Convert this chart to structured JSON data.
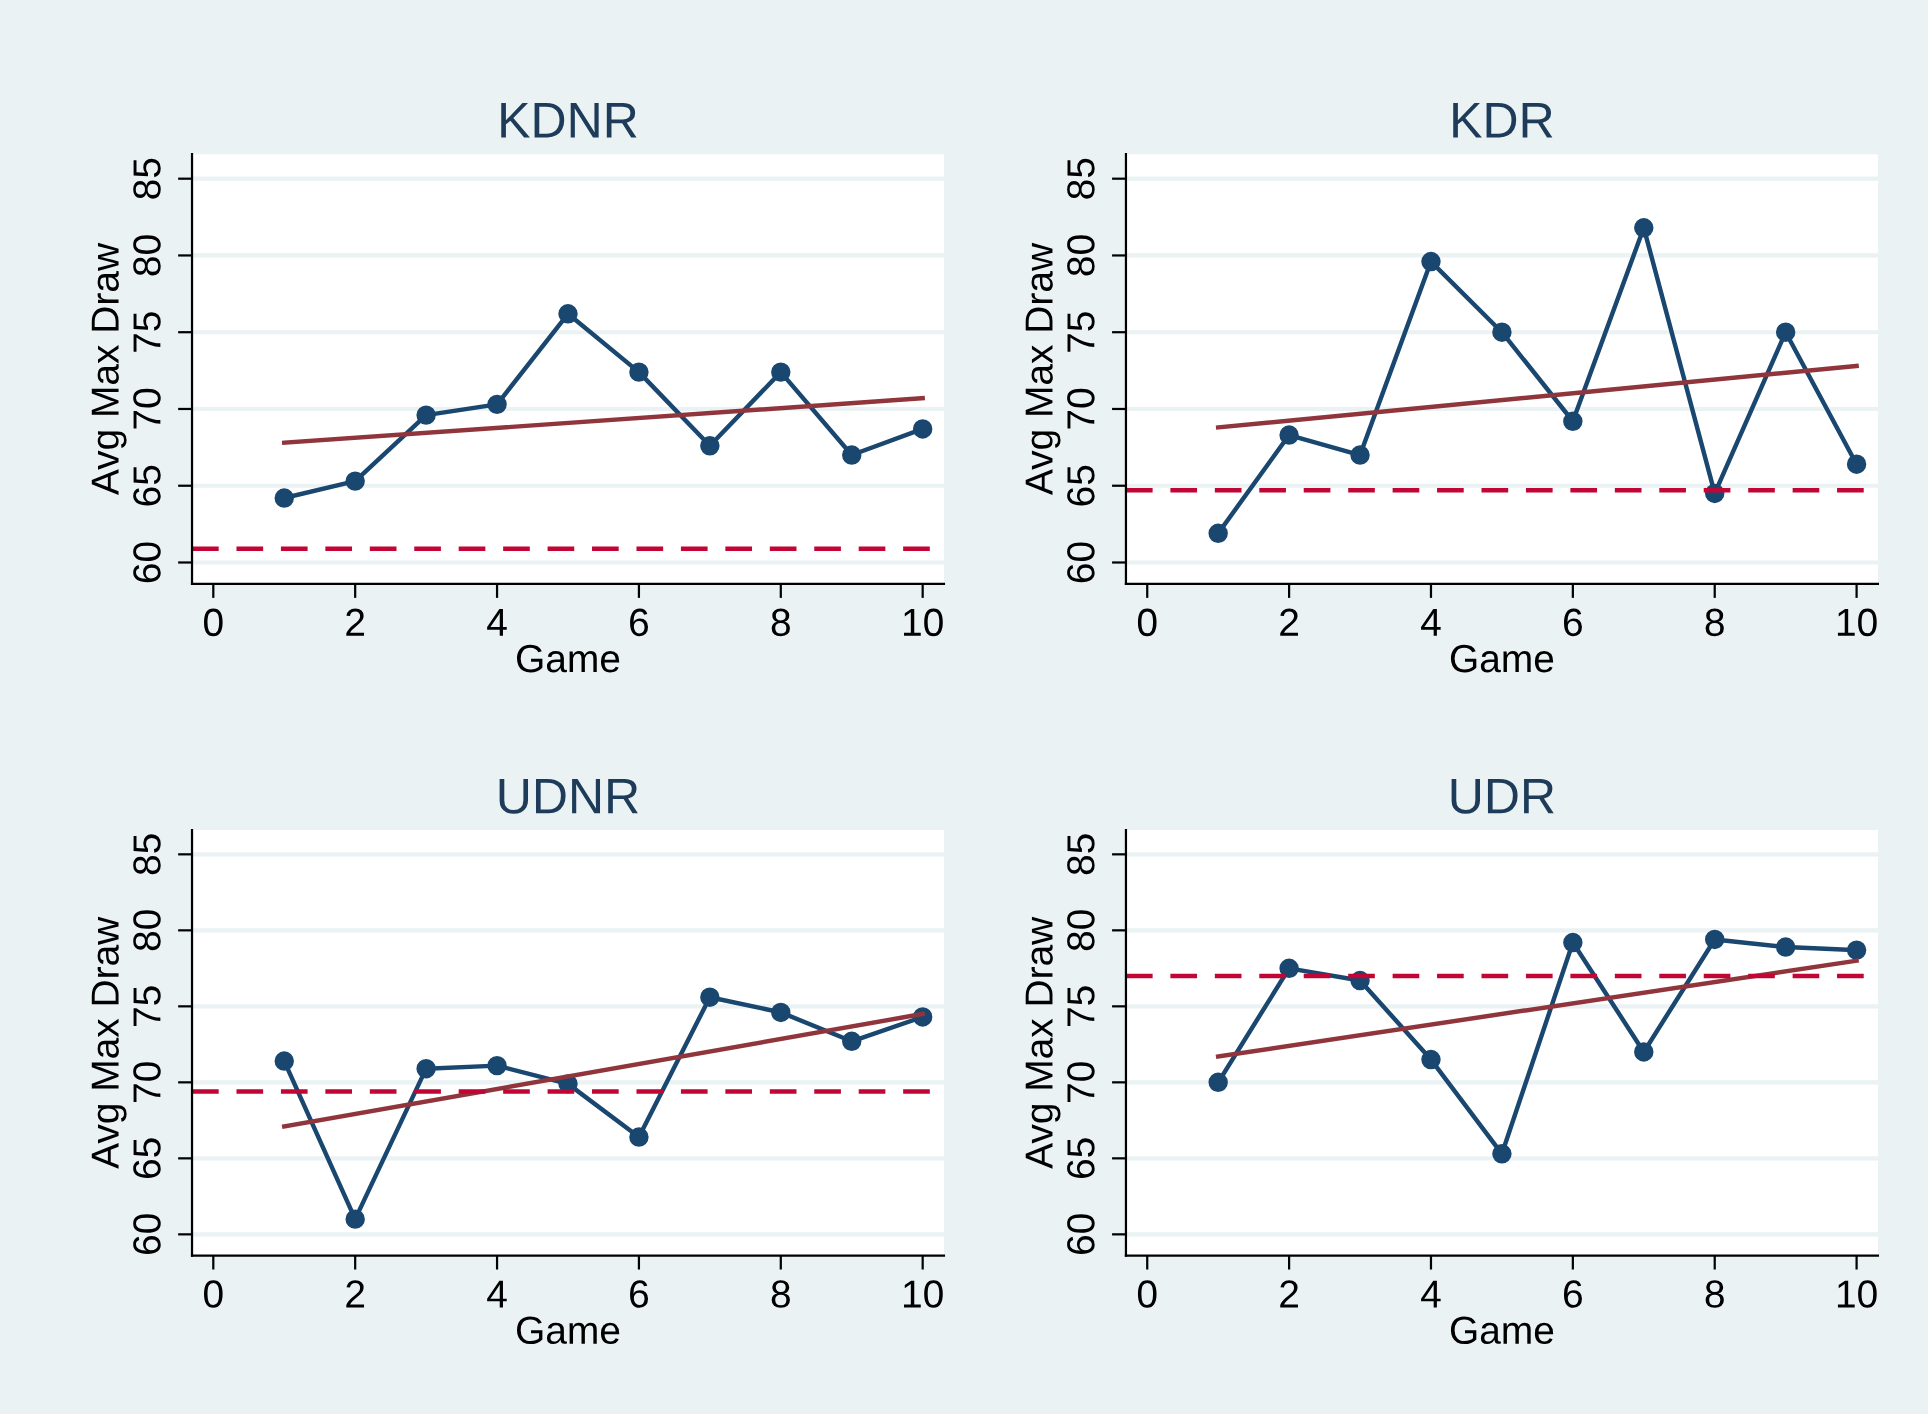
{
  "chart_data": [
    {
      "type": "line",
      "title": "KDNR",
      "xlabel": "Game",
      "ylabel": "Avg Max Draw",
      "xlim": [
        -0.3,
        10.3
      ],
      "xticks": [
        0,
        2,
        4,
        6,
        8,
        10
      ],
      "ylim": [
        58.6,
        86.6
      ],
      "yticks": [
        60,
        65,
        70,
        75,
        80,
        85
      ],
      "grid": "y",
      "marker": "circle",
      "line_style": "solid",
      "series": [
        {
          "color": "#1a476f",
          "x": [
            1,
            2,
            3,
            4,
            5,
            6,
            7,
            8,
            9,
            10
          ],
          "values": [
            64.2,
            65.3,
            69.6,
            70.3,
            76.2,
            72.4,
            67.6,
            72.4,
            67.0,
            68.7
          ]
        },
        {
          "type": "line",
          "marker": "none",
          "color": "#90353b",
          "x": [
            1,
            10
          ],
          "values": [
            67.8,
            70.7
          ]
        }
      ],
      "ref_lines": [
        {
          "axis": "y",
          "value": 60.9,
          "color": "#c10534",
          "line_style": "dashed"
        }
      ]
    },
    {
      "type": "line",
      "title": "KDR",
      "xlabel": "Game",
      "ylabel": "Avg Max Draw",
      "xlim": [
        -0.3,
        10.3
      ],
      "xticks": [
        0,
        2,
        4,
        6,
        8,
        10
      ],
      "ylim": [
        58.6,
        86.6
      ],
      "yticks": [
        60,
        65,
        70,
        75,
        80,
        85
      ],
      "grid": "y",
      "marker": "circle",
      "line_style": "solid",
      "series": [
        {
          "color": "#1a476f",
          "x": [
            1,
            2,
            3,
            4,
            5,
            6,
            7,
            8,
            9,
            10
          ],
          "values": [
            61.9,
            68.3,
            67.0,
            79.6,
            75.0,
            69.2,
            81.8,
            64.5,
            75.0,
            66.4
          ]
        },
        {
          "type": "line",
          "marker": "none",
          "color": "#90353b",
          "x": [
            1,
            10
          ],
          "values": [
            68.8,
            72.8
          ]
        }
      ],
      "ref_lines": [
        {
          "axis": "y",
          "value": 64.7,
          "color": "#c10534",
          "line_style": "dashed"
        }
      ]
    },
    {
      "type": "line",
      "title": "UDNR",
      "xlabel": "Game",
      "ylabel": "Avg Max Draw",
      "xlim": [
        -0.3,
        10.3
      ],
      "xticks": [
        0,
        2,
        4,
        6,
        8,
        10
      ],
      "ylim": [
        58.6,
        86.6
      ],
      "yticks": [
        60,
        65,
        70,
        75,
        80,
        85
      ],
      "grid": "y",
      "marker": "circle",
      "line_style": "solid",
      "series": [
        {
          "color": "#1a476f",
          "x": [
            1,
            2,
            3,
            4,
            5,
            6,
            7,
            8,
            9,
            10
          ],
          "values": [
            71.4,
            61.0,
            70.9,
            71.1,
            69.9,
            66.4,
            75.6,
            74.6,
            72.7,
            74.3
          ]
        },
        {
          "type": "line",
          "marker": "none",
          "color": "#90353b",
          "x": [
            1,
            10
          ],
          "values": [
            67.1,
            74.5
          ]
        }
      ],
      "ref_lines": [
        {
          "axis": "y",
          "value": 69.4,
          "color": "#c10534",
          "line_style": "dashed"
        }
      ]
    },
    {
      "type": "line",
      "title": "UDR",
      "xlabel": "Game",
      "ylabel": "Avg Max Draw",
      "xlim": [
        -0.3,
        10.3
      ],
      "xticks": [
        0,
        2,
        4,
        6,
        8,
        10
      ],
      "ylim": [
        58.6,
        86.6
      ],
      "yticks": [
        60,
        65,
        70,
        75,
        80,
        85
      ],
      "grid": "y",
      "marker": "circle",
      "line_style": "solid",
      "series": [
        {
          "color": "#1a476f",
          "x": [
            1,
            2,
            3,
            4,
            5,
            6,
            7,
            8,
            9,
            10
          ],
          "values": [
            70.0,
            77.5,
            76.7,
            71.5,
            65.3,
            79.2,
            72.0,
            79.4,
            78.9,
            78.7
          ]
        },
        {
          "type": "line",
          "marker": "none",
          "color": "#90353b",
          "x": [
            1,
            10
          ],
          "values": [
            71.7,
            78.0
          ]
        }
      ],
      "ref_lines": [
        {
          "axis": "y",
          "value": 77.0,
          "color": "#c10534",
          "line_style": "dashed"
        }
      ]
    }
  ]
}
